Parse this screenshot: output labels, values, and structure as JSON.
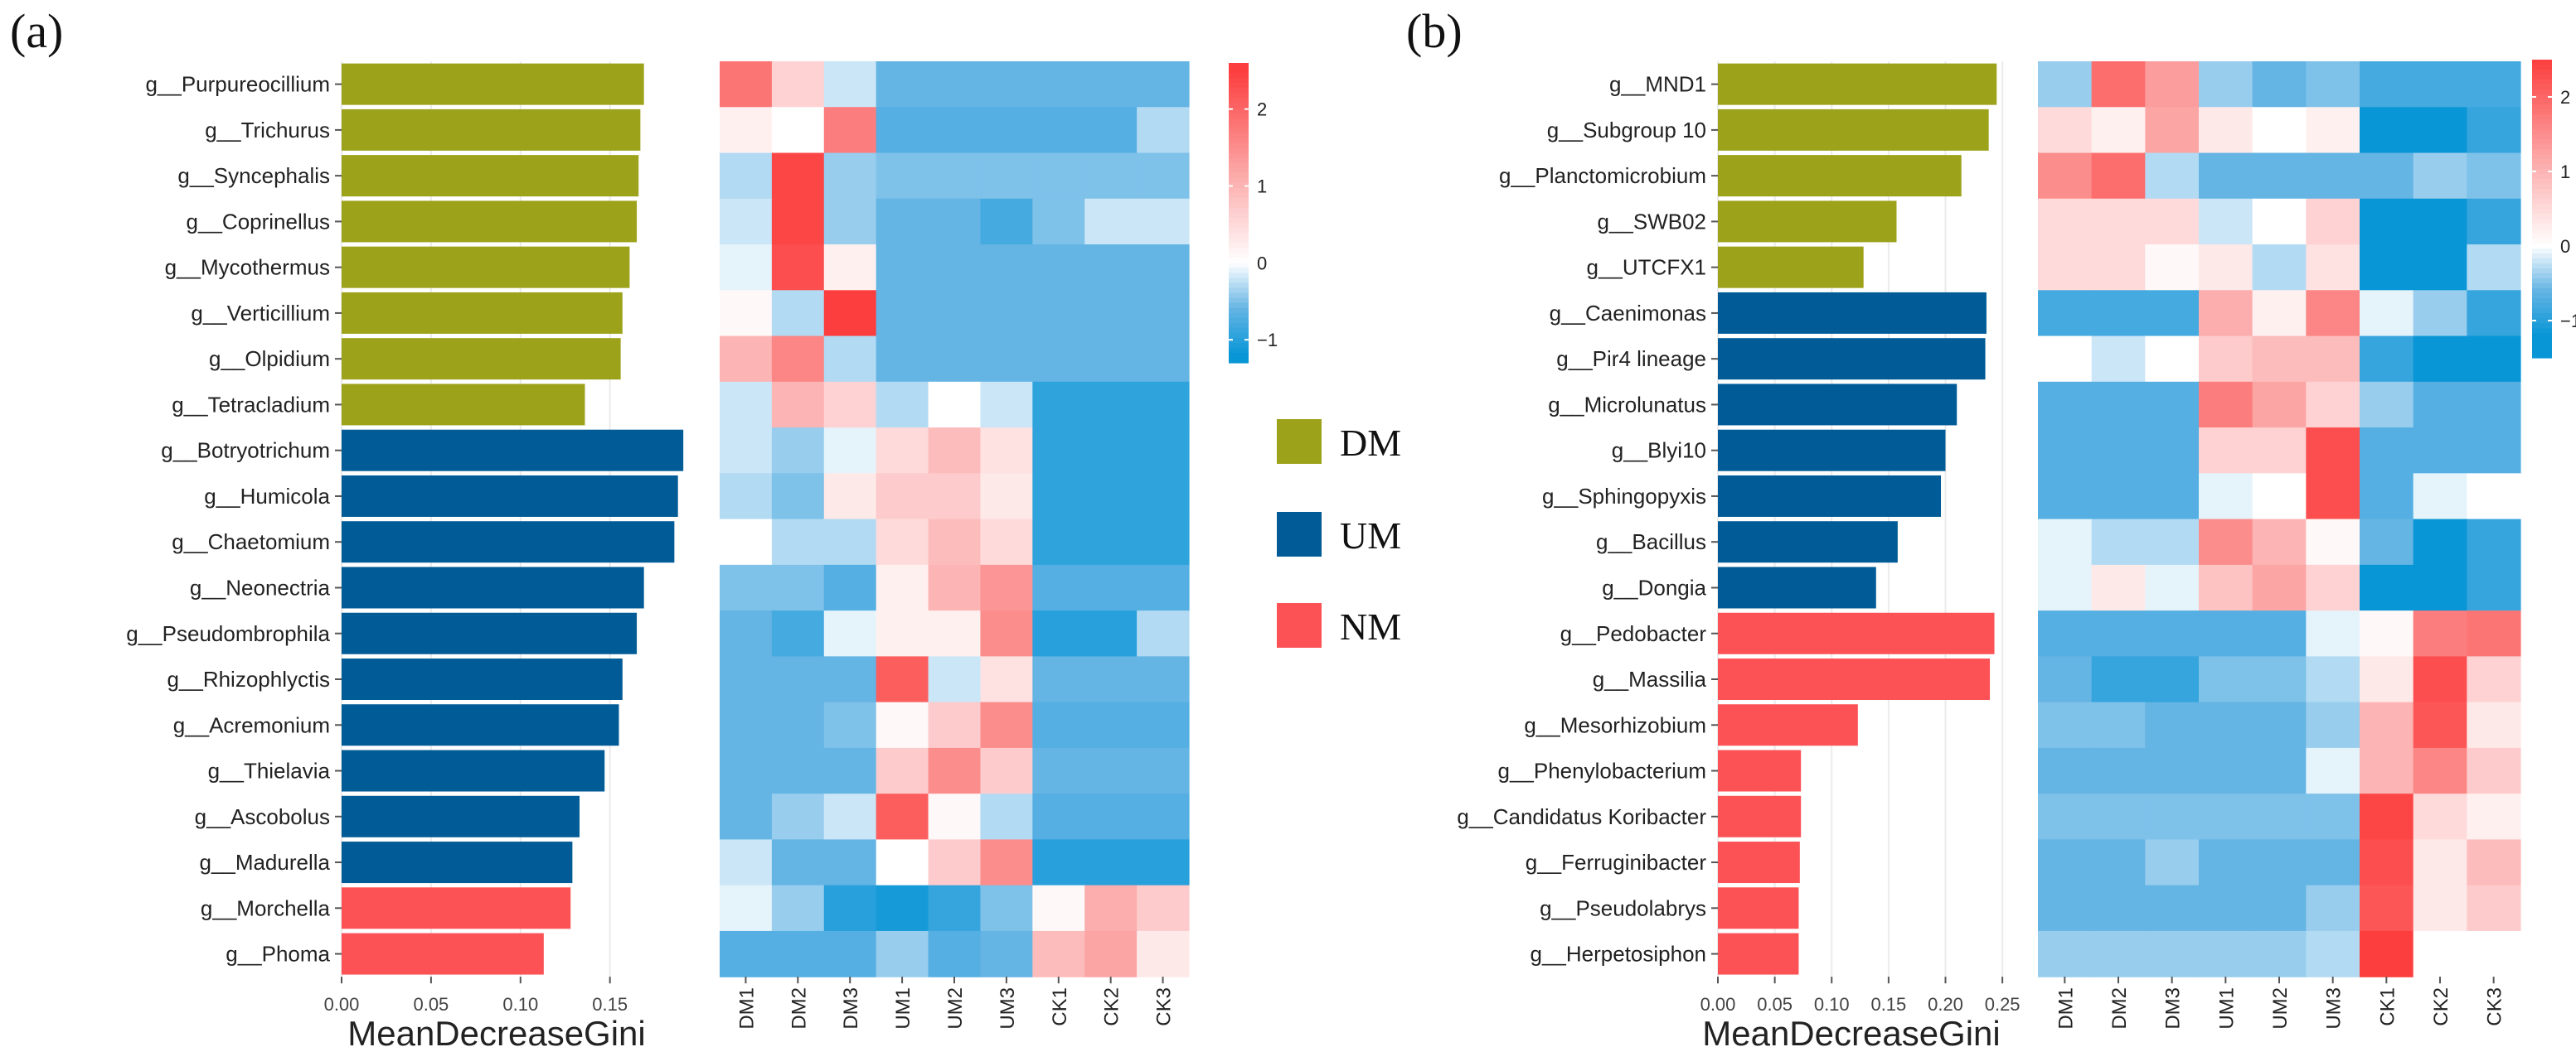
{
  "figure": {
    "panel_a_label": "(a)",
    "panel_b_label": "(b)",
    "group_colors": {
      "DM": "#9da21b",
      "UM": "#005b96",
      "NM": "#fc5256"
    },
    "legend": [
      {
        "key": "DM",
        "label": "DM"
      },
      {
        "key": "UM",
        "label": "UM"
      },
      {
        "key": "NM",
        "label": "NM"
      }
    ]
  },
  "chart_data": [
    {
      "id": "a-bar",
      "type": "bar",
      "orientation": "horizontal",
      "xlabel": "MeanDecreaseGini",
      "xlim": [
        0,
        0.19
      ],
      "xticks": [
        0,
        0.05,
        0.1,
        0.15
      ],
      "xtick_labels": [
        "0.00",
        "0.05",
        "0.10",
        "0.15"
      ],
      "categories": [
        "g__Purpureocillium",
        "g__Trichurus",
        "g__Syncephalis",
        "g__Coprinellus",
        "g__Mycothermus",
        "g__Verticillium",
        "g__Olpidium",
        "g__Tetracladium",
        "g__Botryotrichum",
        "g__Humicola",
        "g__Chaetomium",
        "g__Neonectria",
        "g__Pseudombrophila",
        "g__Rhizophlyctis",
        "g__Acremonium",
        "g__Thielavia",
        "g__Ascobolus",
        "g__Madurella",
        "g__Morchella",
        "g__Phoma"
      ],
      "values": [
        0.169,
        0.167,
        0.166,
        0.165,
        0.161,
        0.157,
        0.156,
        0.136,
        0.191,
        0.188,
        0.186,
        0.169,
        0.165,
        0.157,
        0.155,
        0.147,
        0.133,
        0.129,
        0.128,
        0.113
      ],
      "groups": [
        "DM",
        "DM",
        "DM",
        "DM",
        "DM",
        "DM",
        "DM",
        "DM",
        "UM",
        "UM",
        "UM",
        "UM",
        "UM",
        "UM",
        "UM",
        "UM",
        "UM",
        "UM",
        "NM",
        "NM"
      ]
    },
    {
      "id": "a-heat",
      "type": "heatmap",
      "columns": [
        "DM1",
        "DM2",
        "DM3",
        "UM1",
        "UM2",
        "UM3",
        "CK1",
        "CK2",
        "CK3"
      ],
      "rows": [
        "g__Purpureocillium",
        "g__Trichurus",
        "g__Syncephalis",
        "g__Coprinellus",
        "g__Mycothermus",
        "g__Verticillium",
        "g__Olpidium",
        "g__Tetracladium",
        "g__Botryotrichum",
        "g__Humicola",
        "g__Chaetomium",
        "g__Neonectria",
        "g__Pseudombrophila",
        "g__Rhizophlyctis",
        "g__Acremonium",
        "g__Thielavia",
        "g__Ascobolus",
        "g__Madurella",
        "g__Morchella",
        "g__Phoma"
      ],
      "values": [
        [
          1.8,
          0.6,
          -0.2,
          -0.6,
          -0.6,
          -0.6,
          -0.6,
          -0.6,
          -0.6
        ],
        [
          0.2,
          0.0,
          1.7,
          -0.7,
          -0.7,
          -0.7,
          -0.7,
          -0.7,
          -0.3
        ],
        [
          -0.3,
          2.4,
          -0.4,
          -0.5,
          -0.5,
          -0.5,
          -0.5,
          -0.5,
          -0.5
        ],
        [
          -0.2,
          2.4,
          -0.4,
          -0.6,
          -0.6,
          -0.8,
          -0.5,
          -0.2,
          -0.2
        ],
        [
          -0.1,
          2.3,
          0.2,
          -0.6,
          -0.6,
          -0.6,
          -0.6,
          -0.6,
          -0.6
        ],
        [
          0.1,
          -0.3,
          2.5,
          -0.6,
          -0.6,
          -0.6,
          -0.6,
          -0.6,
          -0.6
        ],
        [
          1.0,
          1.6,
          -0.3,
          -0.6,
          -0.6,
          -0.6,
          -0.6,
          -0.6,
          -0.6
        ],
        [
          -0.2,
          1.0,
          0.6,
          -0.3,
          0.0,
          -0.2,
          -0.95,
          -0.95,
          -0.95
        ],
        [
          -0.2,
          -0.4,
          -0.1,
          0.5,
          0.9,
          0.4,
          -0.95,
          -0.95,
          -0.95
        ],
        [
          -0.3,
          -0.5,
          0.3,
          0.7,
          0.7,
          0.3,
          -0.95,
          -0.95,
          -0.95
        ],
        [
          0.0,
          -0.3,
          -0.3,
          0.5,
          0.9,
          0.5,
          -0.95,
          -0.95,
          -0.95
        ],
        [
          -0.5,
          -0.5,
          -0.7,
          0.2,
          1.0,
          1.4,
          -0.7,
          -0.7,
          -0.7
        ],
        [
          -0.6,
          -0.8,
          -0.1,
          0.2,
          0.2,
          1.5,
          -1.0,
          -1.0,
          -0.3
        ],
        [
          -0.6,
          -0.6,
          -0.6,
          2.1,
          -0.2,
          0.4,
          -0.6,
          -0.6,
          -0.6
        ],
        [
          -0.6,
          -0.6,
          -0.5,
          0.1,
          0.7,
          1.5,
          -0.7,
          -0.7,
          -0.7
        ],
        [
          -0.6,
          -0.6,
          -0.6,
          0.7,
          1.5,
          0.7,
          -0.6,
          -0.6,
          -0.6
        ],
        [
          -0.6,
          -0.4,
          -0.2,
          2.1,
          0.1,
          -0.3,
          -0.7,
          -0.7,
          -0.7
        ],
        [
          -0.2,
          -0.6,
          -0.6,
          0.0,
          0.7,
          1.5,
          -1.0,
          -1.0,
          -1.0
        ],
        [
          -0.1,
          -0.4,
          -1.0,
          -1.1,
          -0.9,
          -0.5,
          0.1,
          1.1,
          0.7
        ],
        [
          -0.7,
          -0.7,
          -0.7,
          -0.4,
          -0.7,
          -0.6,
          0.9,
          1.2,
          0.3
        ]
      ],
      "colorbar_ticks": [
        -1,
        0,
        1,
        2
      ],
      "colorbar_range": [
        -1.3,
        2.6
      ]
    },
    {
      "id": "b-bar",
      "type": "bar",
      "orientation": "horizontal",
      "xlabel": "MeanDecreaseGini",
      "xlim": [
        0,
        0.255
      ],
      "xticks": [
        0,
        0.05,
        0.1,
        0.15,
        0.2,
        0.25
      ],
      "xtick_labels": [
        "0.00",
        "0.05",
        "0.10",
        "0.15",
        "0.20",
        "0.25"
      ],
      "categories": [
        "g__MND1",
        "g__Subgroup 10",
        "g__Planctomicrobium",
        "g__SWB02",
        "g__UTCFX1",
        "g__Caenimonas",
        "g__Pir4 lineage",
        "g__Microlunatus",
        "g__Blyi10",
        "g__Sphingopyxis",
        "g__Bacillus",
        "g__Dongia",
        "g__Pedobacter",
        "g__Massilia",
        "g__Mesorhizobium",
        "g__Phenylobacterium",
        "g__Candidatus Koribacter",
        "g__Ferruginibacter",
        "g__Pseudolabrys",
        "g__Herpetosiphon"
      ],
      "values": [
        0.245,
        0.238,
        0.214,
        0.157,
        0.128,
        0.236,
        0.235,
        0.21,
        0.2,
        0.196,
        0.158,
        0.139,
        0.243,
        0.239,
        0.123,
        0.073,
        0.073,
        0.072,
        0.071,
        0.071
      ],
      "groups": [
        "DM",
        "DM",
        "DM",
        "DM",
        "DM",
        "UM",
        "UM",
        "UM",
        "UM",
        "UM",
        "UM",
        "UM",
        "NM",
        "NM",
        "NM",
        "NM",
        "NM",
        "NM",
        "NM",
        "NM"
      ]
    },
    {
      "id": "b-heat",
      "type": "heatmap",
      "columns": [
        "DM1",
        "DM2",
        "DM3",
        "UM1",
        "UM2",
        "UM3",
        "CK1",
        "CK2",
        "CK3"
      ],
      "rows": [
        "g__MND1",
        "g__Subgroup 10",
        "g__Planctomicrobium",
        "g__SWB02",
        "g__UTCFX1",
        "g__Caenimonas",
        "g__Pir4 lineage",
        "g__Microlunatus",
        "g__Blyi10",
        "g__Sphingopyxis",
        "g__Bacillus",
        "g__Dongia",
        "g__Pedobacter",
        "g__Massilia",
        "g__Mesorhizobium",
        "g__Phenylobacterium",
        "g__Candidatus Koribacter",
        "g__Ferruginibacter",
        "g__Pseudolabrys",
        "g__Herpetosiphon"
      ],
      "values": [
        [
          -0.4,
          1.9,
          1.3,
          -0.4,
          -0.6,
          -0.5,
          -0.8,
          -0.8,
          -0.8
        ],
        [
          0.5,
          0.2,
          1.2,
          0.3,
          0.0,
          0.2,
          -1.3,
          -1.4,
          -0.9
        ],
        [
          1.5,
          1.9,
          -0.3,
          -0.6,
          -0.6,
          -0.6,
          -0.6,
          -0.4,
          -0.5
        ],
        [
          0.5,
          0.5,
          0.5,
          -0.2,
          0.0,
          0.6,
          -1.3,
          -1.3,
          -0.9
        ],
        [
          0.5,
          0.5,
          0.1,
          0.3,
          -0.3,
          0.4,
          -1.4,
          -1.4,
          -0.3
        ],
        [
          -0.8,
          -0.8,
          -0.8,
          1.1,
          0.2,
          1.6,
          -0.1,
          -0.4,
          -0.9
        ],
        [
          0.0,
          -0.2,
          0.0,
          0.7,
          0.9,
          0.9,
          -0.9,
          -1.2,
          -1.2
        ],
        [
          -0.7,
          -0.7,
          -0.7,
          1.7,
          1.2,
          0.6,
          -0.4,
          -0.7,
          -0.7
        ],
        [
          -0.7,
          -0.7,
          -0.7,
          0.6,
          0.6,
          2.3,
          -0.7,
          -0.7,
          -0.7
        ],
        [
          -0.7,
          -0.7,
          -0.7,
          -0.1,
          0.0,
          2.3,
          -0.7,
          -0.1,
          0.0
        ],
        [
          -0.1,
          -0.3,
          -0.3,
          1.5,
          1.0,
          0.1,
          -0.6,
          -1.3,
          -0.9
        ],
        [
          -0.1,
          0.3,
          -0.1,
          0.8,
          1.2,
          0.6,
          -1.4,
          -1.4,
          -0.9
        ],
        [
          -0.7,
          -0.7,
          -0.7,
          -0.7,
          -0.7,
          -0.1,
          0.1,
          1.7,
          1.8
        ],
        [
          -0.6,
          -0.9,
          -0.9,
          -0.5,
          -0.5,
          -0.3,
          0.3,
          2.3,
          0.6
        ],
        [
          -0.5,
          -0.5,
          -0.6,
          -0.6,
          -0.6,
          -0.4,
          1.0,
          2.2,
          0.3
        ],
        [
          -0.6,
          -0.6,
          -0.6,
          -0.6,
          -0.6,
          -0.1,
          1.0,
          1.6,
          0.7
        ],
        [
          -0.5,
          -0.5,
          -0.5,
          -0.5,
          -0.5,
          -0.5,
          2.4,
          0.5,
          0.2
        ],
        [
          -0.6,
          -0.6,
          -0.4,
          -0.6,
          -0.6,
          -0.6,
          2.3,
          0.3,
          0.9
        ],
        [
          -0.6,
          -0.6,
          -0.6,
          -0.6,
          -0.6,
          -0.4,
          2.2,
          0.3,
          0.7
        ],
        [
          -0.4,
          -0.4,
          -0.4,
          -0.4,
          -0.4,
          -0.3,
          2.5,
          0.0,
          0.0
        ]
      ],
      "colorbar_ticks": [
        -1,
        0,
        1,
        2
      ],
      "colorbar_range": [
        -1.5,
        2.5
      ]
    }
  ]
}
